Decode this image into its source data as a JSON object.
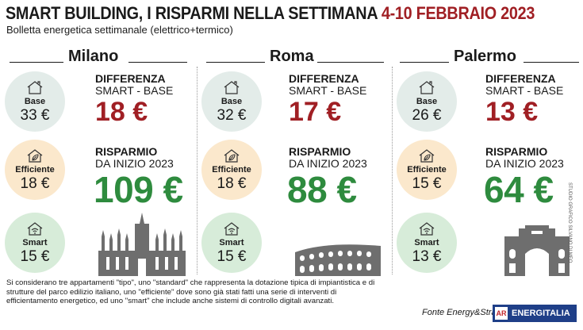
{
  "header": {
    "title": "SMART BUILDING, I RISPARMI NELLA SETTIMANA",
    "date_range": "4-10 FEBBRAIO 2023",
    "subtitle": "Bolletta energetica settimanale (elettrico+termico)"
  },
  "labels": {
    "diff_line1": "DIFFERENZA",
    "diff_line2": "SMART - BASE",
    "save_line1": "RISPARMIO",
    "save_line2": "DA INIZIO 2023",
    "base": "Base",
    "efficient": "Efficiente",
    "smart": "Smart"
  },
  "cities": [
    {
      "name": "Milano",
      "base": "33 €",
      "efficient": "18 €",
      "smart": "15 €",
      "difference": "18 €",
      "savings": "109 €"
    },
    {
      "name": "Roma",
      "base": "32 €",
      "efficient": "18 €",
      "smart": "15 €",
      "difference": "17 €",
      "savings": "88 €"
    },
    {
      "name": "Palermo",
      "base": "26 €",
      "efficient": "15 €",
      "smart": "13 €",
      "difference": "13 €",
      "savings": "64 €"
    }
  ],
  "icons": {
    "base": "house-icon",
    "efficient": "house-leaf-icon",
    "smart": "house-wifi-icon",
    "landmarks": [
      "milan-cathedral-icon",
      "colosseum-icon",
      "palermo-gate-icon"
    ]
  },
  "footer": {
    "note": "Si considerano tre appartamenti \"tipo\", uno \"standard\" che rappresenta la dotazione tipica di impiantistica e di strutture del parco edilizio italiano, uno \"efficiente\" dove sono già stati fatti una serie di interventi di efficientamento energetico, ed uno \"smart\" che include anche sistemi di controllo digitali avanzati.",
    "source": "Fonte Energy&Strategy",
    "logo_mark": "AR",
    "logo_text": "ENERGITALIA",
    "credit": "STUDIO GRAFICO SILVANO DI MEO"
  },
  "colors": {
    "accent_red": "#a01f24",
    "savings_green": "#2e8b3e",
    "base_circle": "#e3ece9",
    "efficient_circle": "#fbe8cc",
    "smart_circle": "#d7ecd9",
    "logo_blue": "#1f3f88"
  }
}
